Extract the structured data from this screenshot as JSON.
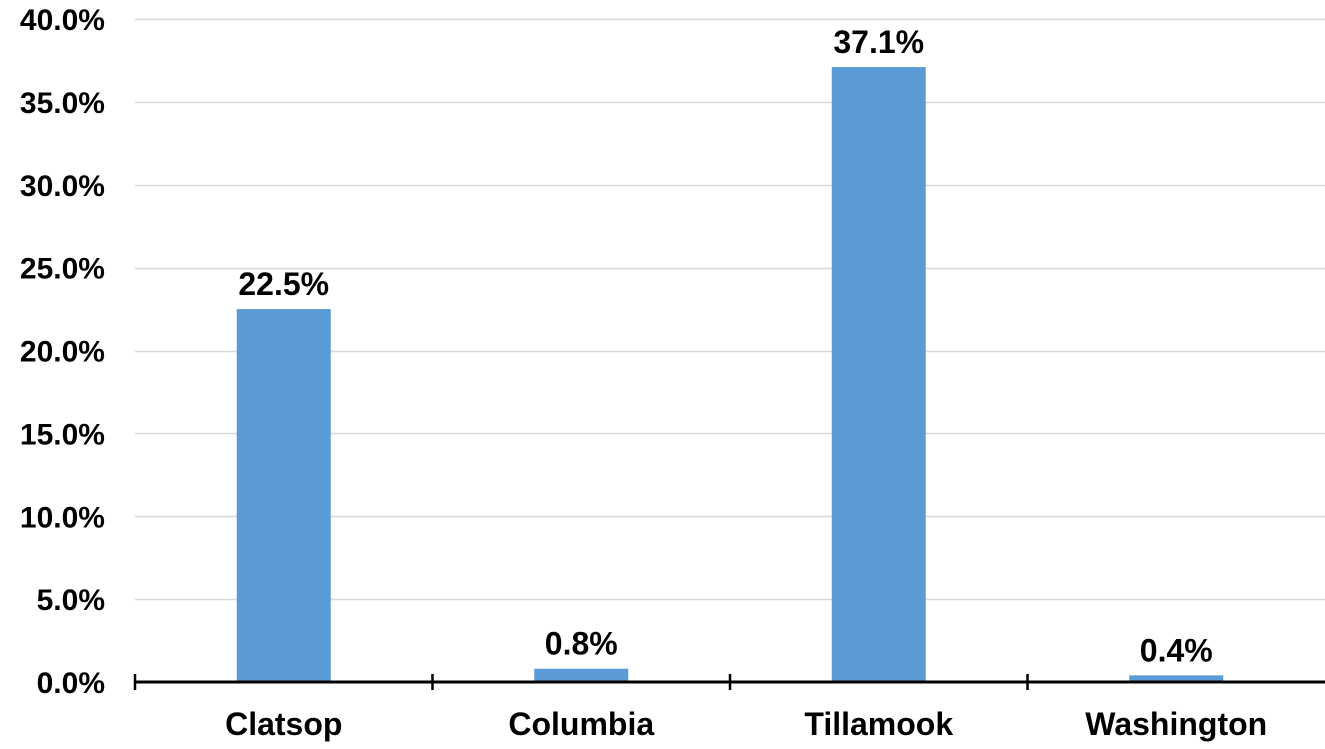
{
  "chart_data": {
    "type": "bar",
    "categories": [
      "Clatsop",
      "Columbia",
      "Tillamook",
      "Washington"
    ],
    "values": [
      22.5,
      0.8,
      37.1,
      0.4
    ],
    "data_labels": [
      "22.5%",
      "0.8%",
      "37.1%",
      "0.4%"
    ],
    "ylim": [
      0,
      40
    ],
    "yticks": [
      0,
      5,
      10,
      15,
      20,
      25,
      30,
      35,
      40
    ],
    "ytick_labels": [
      "0.0%",
      "5.0%",
      "10.0%",
      "15.0%",
      "20.0%",
      "25.0%",
      "30.0%",
      "35.0%",
      "40.0%"
    ],
    "title": "",
    "xlabel": "",
    "ylabel": "",
    "grid": true,
    "legend": "none",
    "colors": {
      "bar": "#5b9bd5",
      "grid": "#d9d9d9",
      "axis": "#000000"
    }
  }
}
